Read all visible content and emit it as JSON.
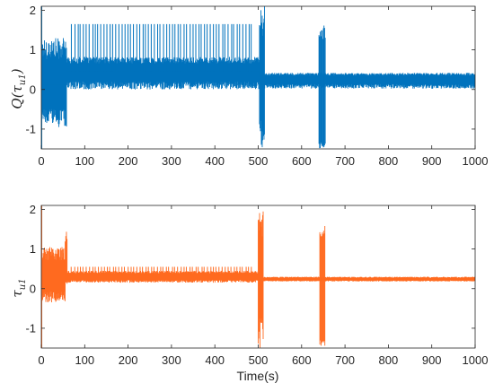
{
  "chart_data": [
    {
      "type": "line",
      "ylabel": "Q(τu1)",
      "ylabel_main": "Q(τ",
      "ylabel_sub": "u1",
      "ylabel_close": ")",
      "xlabel": "",
      "xlim": [
        0,
        1000
      ],
      "ylim": [
        -1.5,
        2.1
      ],
      "xticks": [
        0,
        100,
        200,
        300,
        400,
        500,
        600,
        700,
        800,
        900,
        1000
      ],
      "yticks": [
        -1,
        0,
        1,
        2
      ],
      "grid": false,
      "color": "#0072BD",
      "series": [
        {
          "segments": [
            {
              "t": [
                0,
                58
              ],
              "low": -0.95,
              "high": 1.3,
              "mean": 0.1
            },
            {
              "t": [
                58,
                503
              ],
              "low": 0.0,
              "high": 0.82,
              "mean": 0.45
            },
            {
              "t": [
                503,
                515
              ],
              "low": -1.5,
              "high": 2.1,
              "mean": 0.2
            },
            {
              "t": [
                515,
                1000
              ],
              "low": 0.02,
              "high": 0.42,
              "mean": 0.28
            }
          ],
          "spikes": [
            {
              "t": [
                70,
                485
              ],
              "count": 62,
              "peak": 1.65
            },
            {
              "t": [
                640,
                655
              ],
              "low": -1.5,
              "high": 1.65
            }
          ],
          "initial_transient": {
            "t": 2,
            "low": -1.5,
            "high": 2.1
          }
        }
      ]
    },
    {
      "type": "line",
      "ylabel": "τu1",
      "ylabel_main": "τ",
      "ylabel_sub": "u1",
      "ylabel_close": "",
      "xlabel": "Time(s)",
      "xlim": [
        0,
        1000
      ],
      "ylim": [
        -1.5,
        2.1
      ],
      "xticks": [
        0,
        100,
        200,
        300,
        400,
        500,
        600,
        700,
        800,
        900,
        1000
      ],
      "yticks": [
        -1,
        0,
        1,
        2
      ],
      "grid": false,
      "color": "#FF6A1F",
      "series": [
        {
          "segments": [
            {
              "t": [
                0,
                55
              ],
              "low": -0.35,
              "high": 1.05,
              "mean": 0.3
            },
            {
              "t": [
                55,
                500
              ],
              "low": 0.15,
              "high": 0.45,
              "mean": 0.3
            },
            {
              "t": [
                500,
                512
              ],
              "low": -1.5,
              "high": 2.1,
              "mean": 0.25
            },
            {
              "t": [
                512,
                1000
              ],
              "low": 0.18,
              "high": 0.3,
              "mean": 0.24
            }
          ],
          "spikes": [
            {
              "t": [
                70,
                485
              ],
              "count": 62,
              "peak": 0.55
            },
            {
              "t": [
                55,
                60
              ],
              "low": 0.1,
              "high": 1.5
            },
            {
              "t": [
                642,
                655
              ],
              "low": -1.5,
              "high": 1.6
            }
          ],
          "initial_transient": {
            "t": 2,
            "low": -1.5,
            "high": 2.1
          }
        }
      ]
    }
  ]
}
